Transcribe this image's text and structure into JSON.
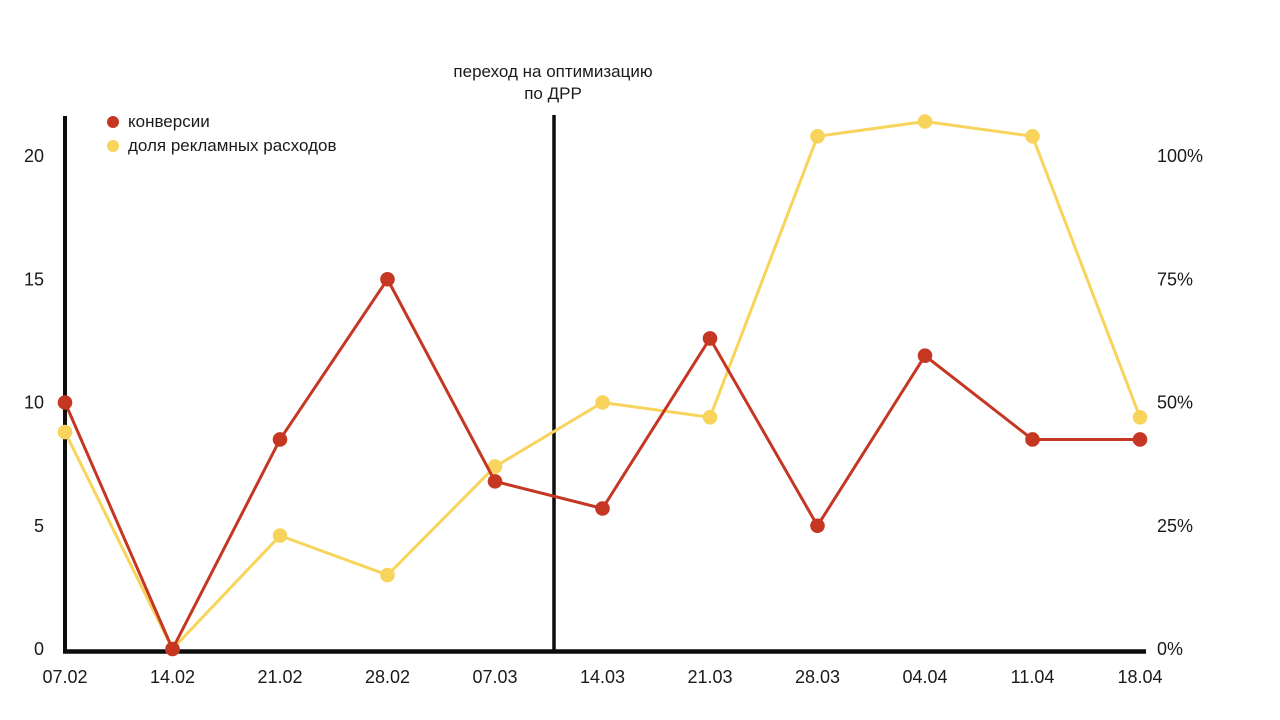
{
  "chart_data": {
    "type": "line",
    "title": "",
    "categories": [
      "07.02",
      "14.02",
      "21.02",
      "28.02",
      "07.03",
      "14.03",
      "21.03",
      "28.03",
      "04.04",
      "11.04",
      "18.04"
    ],
    "series": [
      {
        "name": "конверсии",
        "axis": "left",
        "color": "#c53723",
        "values": [
          10,
          0,
          8.5,
          15,
          6.8,
          5.7,
          12.6,
          5,
          11.9,
          8.5,
          8.5
        ]
      },
      {
        "name": "доля рекламных расходов",
        "axis": "right",
        "unit": "%",
        "color": "#f8d45c",
        "values": [
          44,
          0,
          23,
          15,
          37,
          50,
          47,
          104,
          107,
          104,
          47
        ]
      }
    ],
    "left_axis": {
      "tick_values": [
        0,
        5,
        10,
        15,
        20
      ],
      "tick_labels": [
        "0",
        "5",
        "10",
        "15",
        "20"
      ],
      "range": [
        0,
        21.7
      ]
    },
    "right_axis": {
      "tick_values": [
        0,
        25,
        50,
        75,
        100
      ],
      "tick_labels": [
        "0%",
        "25%",
        "50%",
        "75%",
        "100%"
      ],
      "range_percent": [
        0,
        108.8
      ]
    },
    "annotation": {
      "line1": "переход на оптимизацию",
      "line2": "по ДРР",
      "between": [
        "07.03",
        "14.03"
      ]
    },
    "legend_position": "top-left",
    "grid": false,
    "background_color": "#ffffff",
    "axis_color": "#0d0d0d",
    "text_color": "#1a1a1a"
  }
}
